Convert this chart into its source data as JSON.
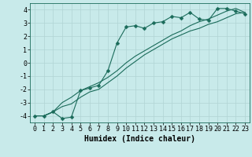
{
  "title": "",
  "xlabel": "Humidex (Indice chaleur)",
  "xlim": [
    -0.5,
    23.5
  ],
  "ylim": [
    -4.5,
    4.5
  ],
  "yticks": [
    -4,
    -3,
    -2,
    -1,
    0,
    1,
    2,
    3,
    4
  ],
  "xticks": [
    0,
    1,
    2,
    3,
    4,
    5,
    6,
    7,
    8,
    9,
    10,
    11,
    12,
    13,
    14,
    15,
    16,
    17,
    18,
    19,
    20,
    21,
    22,
    23
  ],
  "background_color": "#c8eaea",
  "grid_color": "#b0d4d4",
  "line_color": "#1a6b5a",
  "markersize": 2.5,
  "curve1_x": [
    0,
    1,
    2,
    3,
    4,
    5,
    6,
    7,
    8,
    9,
    10,
    11,
    12,
    13,
    14,
    15,
    16,
    17,
    18,
    19,
    20,
    21,
    22,
    23
  ],
  "curve1_y": [
    -4.0,
    -4.0,
    -3.7,
    -4.2,
    -4.1,
    -2.1,
    -1.9,
    -1.7,
    -0.6,
    1.5,
    2.7,
    2.8,
    2.6,
    3.0,
    3.1,
    3.5,
    3.4,
    3.8,
    3.3,
    3.2,
    4.1,
    4.1,
    3.9,
    3.7
  ],
  "curve2_x": [
    0,
    1,
    2,
    3,
    4,
    5,
    6,
    7,
    8,
    9,
    10,
    11,
    12,
    13,
    14,
    15,
    16,
    17,
    18,
    19,
    20,
    21,
    22,
    23
  ],
  "curve2_y": [
    -4.0,
    -4.0,
    -3.7,
    -3.3,
    -3.1,
    -2.6,
    -2.2,
    -2.0,
    -1.5,
    -1.0,
    -0.4,
    0.1,
    0.6,
    1.0,
    1.4,
    1.8,
    2.1,
    2.4,
    2.6,
    2.9,
    3.1,
    3.4,
    3.7,
    3.8
  ],
  "curve3_x": [
    0,
    1,
    2,
    3,
    4,
    5,
    6,
    7,
    8,
    9,
    10,
    11,
    12,
    13,
    14,
    15,
    16,
    17,
    18,
    19,
    20,
    21,
    22,
    23
  ],
  "curve3_y": [
    -4.0,
    -4.0,
    -3.7,
    -3.0,
    -2.6,
    -2.1,
    -1.8,
    -1.5,
    -1.1,
    -0.6,
    0.0,
    0.5,
    0.9,
    1.3,
    1.7,
    2.1,
    2.4,
    2.8,
    3.1,
    3.3,
    3.6,
    3.9,
    4.1,
    3.8
  ],
  "tick_fontsize": 6,
  "xlabel_fontsize": 7
}
